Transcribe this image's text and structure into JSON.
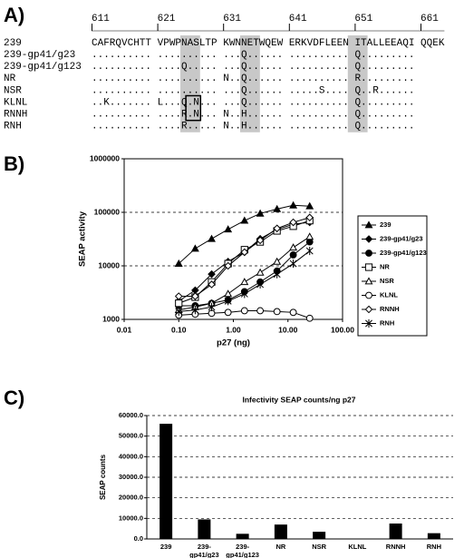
{
  "panel_labels": [
    "A)",
    "B)",
    "C)"
  ],
  "alignment": {
    "positions": [
      611,
      621,
      631,
      641,
      651,
      661
    ],
    "rows": [
      {
        "name": "239",
        "sequence": "CAFRQVCHTT VPWPNASLTP KWNNETWQEW ERKVDFLEEN ITALLEEAQI QQEK"
      },
      {
        "name": "239-gp41/g23",
        "sequence": ".......... .......... ...Q...... .......... Q........."
      },
      {
        "name": "239-gp41/g123",
        "sequence": ".......... ....Q..... ...Q...... .......... Q........."
      },
      {
        "name": "NR",
        "sequence": ".......... .......... N..Q...... .......... R........."
      },
      {
        "name": "NSR",
        "sequence": ".......... .......... ...Q...... .....S.... Q..R......"
      },
      {
        "name": "KLNL",
        "sequence": "..K....... L...Q.N... ...Q...... .......... Q........."
      },
      {
        "name": "RNNH",
        "sequence": ".......... ....R.N... N..H...... .......... Q........."
      },
      {
        "name": "RNH",
        "sequence": ".......... ....R..... N..H...... .......... Q........."
      }
    ]
  },
  "chart_data": [
    {
      "type": "line",
      "xlabel": "p27 (ng)",
      "ylabel": "SEAP activity",
      "xscale": "log",
      "yscale": "log",
      "x": [
        0.1,
        0.2,
        0.4,
        0.8,
        1.6,
        3.1,
        6.3,
        12.5,
        25
      ],
      "xlim": [
        0.01,
        100
      ],
      "xticks": [
        0.01,
        {
          "value": 0.1,
          "label": "0.10"
        },
        {
          "value": 1,
          "label": "1.00"
        },
        {
          "value": 10,
          "label": "10.00"
        },
        {
          "value": 100,
          "label": "100.00"
        }
      ],
      "ylim": [
        1000,
        1000000
      ],
      "yticks": [
        1000,
        10000,
        100000,
        1000000
      ],
      "grid": true,
      "legend": "right",
      "series": [
        {
          "name": "239",
          "color": "#000000",
          "marker": "triangle-filled",
          "values": [
            11000,
            21000,
            32000,
            48000,
            70000,
            95000,
            115000,
            135000,
            130000
          ]
        },
        {
          "name": "239-gp41/g23",
          "color": "#000000",
          "marker": "diamond-filled",
          "values": [
            2200,
            3500,
            7000,
            12000,
            18000,
            32000,
            48000,
            60000,
            65000
          ]
        },
        {
          "name": "239-gp41/g123",
          "color": "#000000",
          "marker": "circle-filled",
          "values": [
            1800,
            1800,
            2000,
            2300,
            3300,
            5000,
            8000,
            16000,
            28000
          ]
        },
        {
          "name": "NR",
          "color": "#000000",
          "marker": "square-open",
          "values": [
            2000,
            2600,
            5000,
            11000,
            20000,
            28000,
            45000,
            55000,
            70000
          ]
        },
        {
          "name": "NSR",
          "color": "#000000",
          "marker": "triangle-open",
          "values": [
            1500,
            1700,
            2000,
            3000,
            5000,
            7500,
            12000,
            22000,
            35000
          ]
        },
        {
          "name": "KLNL",
          "color": "#000000",
          "marker": "circle-open",
          "values": [
            1200,
            1250,
            1300,
            1350,
            1450,
            1450,
            1400,
            1350,
            1050
          ]
        },
        {
          "name": "RNNH",
          "color": "#000000",
          "marker": "diamond-open",
          "values": [
            2700,
            2700,
            4500,
            10000,
            18000,
            30000,
            50000,
            65000,
            80000
          ]
        },
        {
          "name": "RNH",
          "color": "#000000",
          "marker": "star",
          "values": [
            1400,
            1500,
            1700,
            2200,
            3000,
            4500,
            7000,
            11000,
            19000
          ]
        }
      ]
    },
    {
      "type": "bar",
      "title": "Infectivity SEAP counts/ng p27",
      "ylabel": "SEAP counts",
      "categories": [
        "239",
        "239-gp41/g23",
        "239-gp41/g123",
        "NR",
        "NSR",
        "KLNL",
        "RNNH",
        "RNH"
      ],
      "values": [
        56000,
        9500,
        2500,
        7000,
        3500,
        200,
        7500,
        2800
      ],
      "color": "#000000",
      "ylim": [
        0,
        60000
      ],
      "yticks": [
        {
          "value": 0,
          "label": "0.0"
        },
        {
          "value": 10000,
          "label": "10000.0"
        },
        {
          "value": 20000,
          "label": "20000.0"
        },
        {
          "value": 30000,
          "label": "30000.0"
        },
        {
          "value": 40000,
          "label": "40000.0"
        },
        {
          "value": 50000,
          "label": "50000.0"
        },
        {
          "value": 60000,
          "label": "60000.0"
        }
      ],
      "grid": true
    }
  ]
}
